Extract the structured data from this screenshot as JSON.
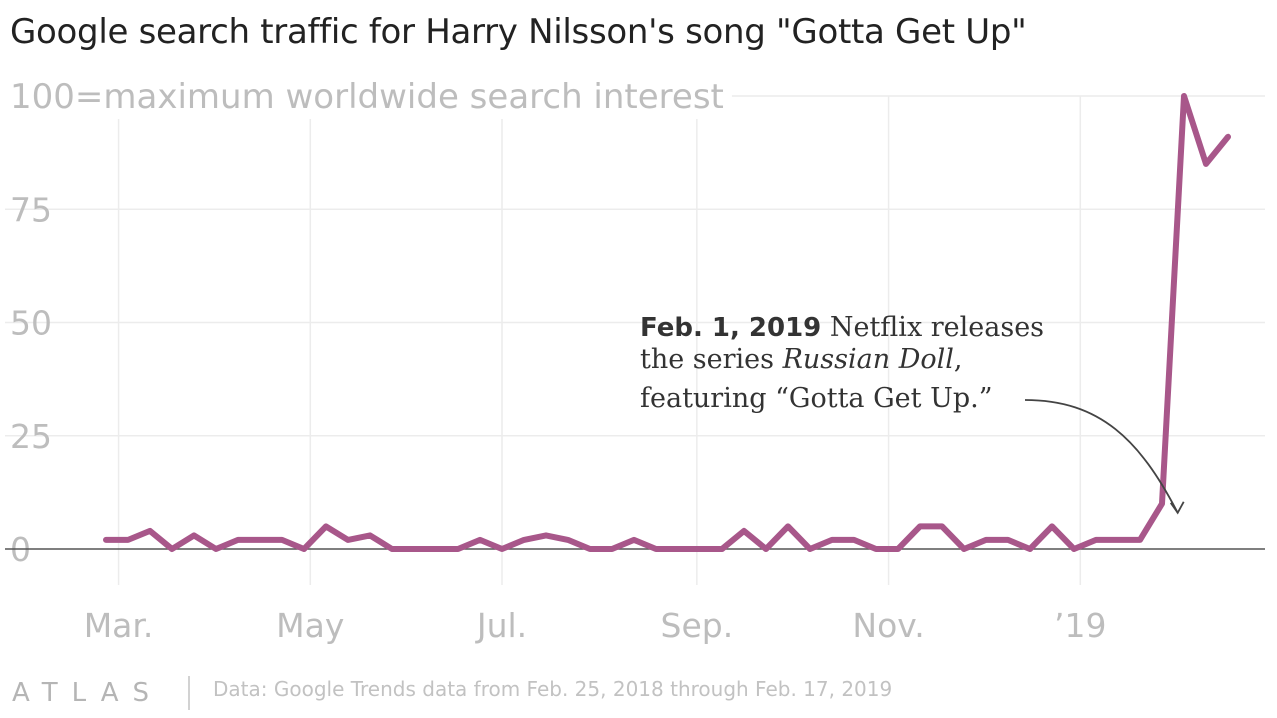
{
  "title": "Google search traffic for Harry Nilsson's song \"Gotta Get Up\"",
  "subtitle": "100=maximum worldwide search interest",
  "colors": {
    "line": "#A8578A",
    "grid": "#ececec",
    "axis": "#555555",
    "tick_text": "#bdbdbd",
    "annotation": "#333333"
  },
  "chart_data": {
    "type": "line",
    "title": "Google search traffic for Harry Nilsson's song \"Gotta Get Up\"",
    "ylabel": "100=maximum worldwide search interest",
    "ylim": [
      0,
      100
    ],
    "y_ticks": [
      0,
      25,
      50,
      75
    ],
    "x_ticks": [
      {
        "label": "Mar.",
        "date": "2018-03-01"
      },
      {
        "label": "May",
        "date": "2018-05-01"
      },
      {
        "label": "Jul.",
        "date": "2018-07-01"
      },
      {
        "label": "Sep.",
        "date": "2018-09-01"
      },
      {
        "label": "Nov.",
        "date": "2018-11-01"
      },
      {
        "label": "’19",
        "date": "2019-01-01"
      }
    ],
    "xlim": [
      "2018-02-20",
      "2019-02-27"
    ],
    "grid": true,
    "series": [
      {
        "x": [
          "2018-02-25",
          "2018-03-04",
          "2018-03-11",
          "2018-03-18",
          "2018-03-25",
          "2018-04-01",
          "2018-04-08",
          "2018-04-15",
          "2018-04-22",
          "2018-04-29",
          "2018-05-06",
          "2018-05-13",
          "2018-05-20",
          "2018-05-27",
          "2018-06-03",
          "2018-06-10",
          "2018-06-17",
          "2018-06-24",
          "2018-07-01",
          "2018-07-08",
          "2018-07-15",
          "2018-07-22",
          "2018-07-29",
          "2018-08-05",
          "2018-08-12",
          "2018-08-19",
          "2018-08-26",
          "2018-09-02",
          "2018-09-09",
          "2018-09-16",
          "2018-09-23",
          "2018-09-30",
          "2018-10-07",
          "2018-10-14",
          "2018-10-21",
          "2018-10-28",
          "2018-11-04",
          "2018-11-11",
          "2018-11-18",
          "2018-11-25",
          "2018-12-02",
          "2018-12-09",
          "2018-12-16",
          "2018-12-23",
          "2018-12-30",
          "2019-01-06",
          "2019-01-13",
          "2019-01-20",
          "2019-01-27",
          "2019-02-03",
          "2019-02-10",
          "2019-02-17"
        ],
        "values": [
          2,
          2,
          4,
          0,
          3,
          0,
          2,
          2,
          2,
          0,
          5,
          2,
          3,
          0,
          0,
          0,
          0,
          2,
          0,
          2,
          3,
          2,
          0,
          0,
          2,
          0,
          0,
          0,
          0,
          4,
          0,
          5,
          0,
          2,
          2,
          0,
          0,
          5,
          5,
          0,
          2,
          2,
          0,
          5,
          0,
          2,
          2,
          2,
          10,
          100,
          85,
          91
        ]
      }
    ],
    "annotation": {
      "bold": "Feb. 1, 2019",
      "line1_rest": " Netflix releases",
      "line2_before": "the series ",
      "line2_italic": "Russian Doll",
      "line2_after": ",",
      "line3": "featuring “Gotta Get Up.”",
      "target_date": "2019-02-01",
      "target_value": 8
    }
  },
  "footer": {
    "logo": "ATLAS",
    "source": "Data: Google Trends data from Feb. 25, 2018 through Feb. 17, 2019"
  }
}
